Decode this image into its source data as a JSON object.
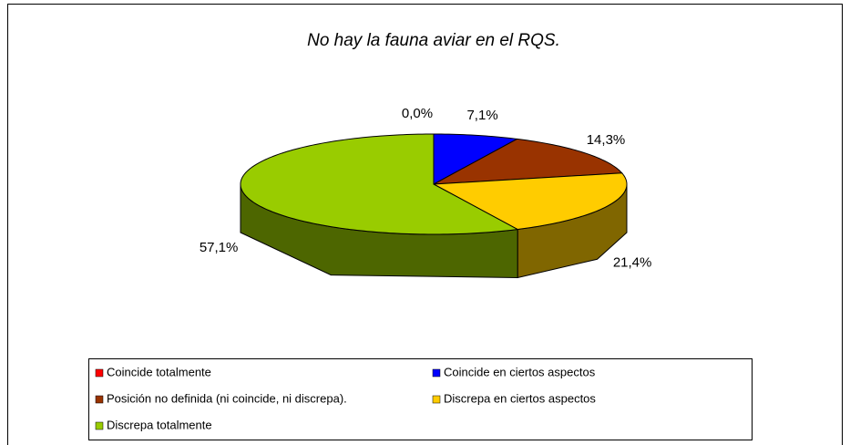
{
  "chart_data": {
    "type": "pie",
    "title": "No hay la fauna aviar en el RQS.",
    "categories": [
      "Coincide totalmente",
      "Coincide en ciertos aspectos",
      "Posición no definida (ni coincide, ni discrepa).",
      "Discrepa en ciertos aspectos",
      "Discrepa totalmente"
    ],
    "values": [
      0,
      7.1,
      14.3,
      21.4,
      57.1
    ],
    "value_labels": [
      "0,0%",
      "7,1%",
      "14,3%",
      "21,4%",
      "57,1%"
    ],
    "colors": [
      "#ff0000",
      "#0000ff",
      "#993300",
      "#ffcc00",
      "#99cc00"
    ],
    "legend": "bottom"
  }
}
